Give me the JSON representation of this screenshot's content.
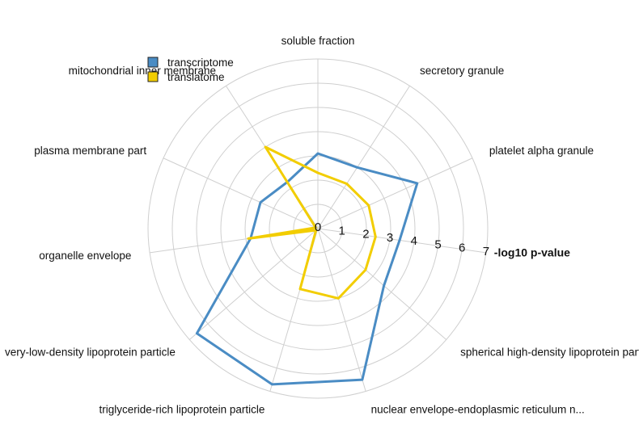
{
  "chart_data": {
    "type": "radar",
    "title": "",
    "axis_title": "-log10 p-value",
    "rmax": 7,
    "ticks": [
      0,
      1,
      2,
      3,
      4,
      5,
      6,
      7
    ],
    "grid": true,
    "legend_placement": "top-left",
    "categories": [
      "soluble fraction",
      "secretory granule",
      "platelet alpha granule",
      "-log10 p-value",
      "spherical high-density lipoprotein parti...",
      "nuclear envelope-endoplasmic reticulum n...",
      "triglyceride-rich lipoprotein particle",
      "very-low-density lipoprotein particle",
      "organelle envelope",
      "plasma membrane part",
      "mitochondrial inner membrane"
    ],
    "series": [
      {
        "name": "transcriptome",
        "color": "#4a8cc4",
        "values": [
          3.1,
          3.0,
          4.5,
          3.4,
          3.6,
          6.5,
          6.7,
          6.6,
          2.8,
          2.6,
          2.3
        ]
      },
      {
        "name": "translatome",
        "color": "#f2cd00",
        "values": [
          2.3,
          2.2,
          2.3,
          2.4,
          2.6,
          3.0,
          2.6,
          0.1,
          2.9,
          0.1,
          4.0
        ]
      }
    ]
  }
}
